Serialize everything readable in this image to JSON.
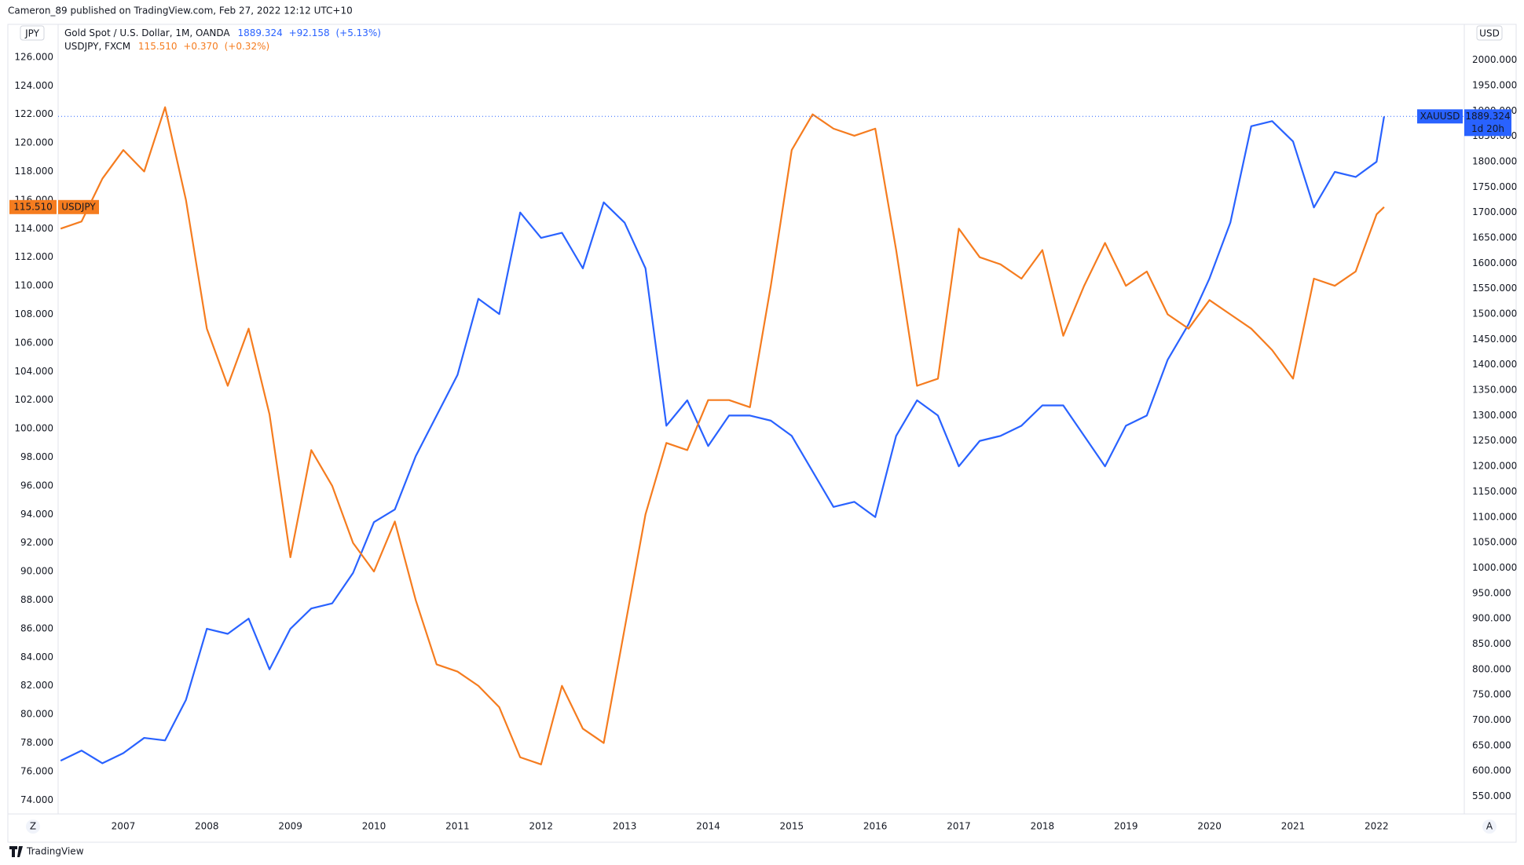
{
  "header": {
    "publisher": "Cameron_89 published on TradingView.com, Feb 27, 2022 12:12 UTC+10",
    "brand": "TradingView",
    "buttons": [
      "Z",
      "A"
    ]
  },
  "chart_data": {
    "type": "line",
    "x": [
      2006.25,
      2006.5,
      2006.75,
      2007.0,
      2007.25,
      2007.5,
      2007.75,
      2008.0,
      2008.25,
      2008.5,
      2008.75,
      2009.0,
      2009.25,
      2009.5,
      2009.75,
      2010.0,
      2010.25,
      2010.5,
      2010.75,
      2011.0,
      2011.25,
      2011.5,
      2011.75,
      2012.0,
      2012.25,
      2012.5,
      2012.75,
      2013.0,
      2013.25,
      2013.5,
      2013.75,
      2014.0,
      2014.25,
      2014.5,
      2014.75,
      2015.0,
      2015.25,
      2015.5,
      2015.75,
      2016.0,
      2016.25,
      2016.5,
      2016.75,
      2017.0,
      2017.25,
      2017.5,
      2017.75,
      2018.0,
      2018.25,
      2018.5,
      2018.75,
      2019.0,
      2019.25,
      2019.5,
      2019.75,
      2020.0,
      2020.25,
      2020.5,
      2020.75,
      2021.0,
      2021.25,
      2021.5,
      2021.75,
      2022.0,
      2022.09
    ],
    "series": [
      {
        "name": "Gold Spot / U.S. Dollar, 1M, OANDA",
        "tag": "XAUUSD",
        "last": "1889.324",
        "change": "+92.158",
        "change_pct": "(+5.13%)",
        "countdown": "1d 20h",
        "color": "#2962ff",
        "axis": "y2",
        "values": [
          620,
          640,
          615,
          635,
          665,
          660,
          740,
          880,
          870,
          900,
          800,
          880,
          920,
          930,
          990,
          1090,
          1115,
          1220,
          1300,
          1380,
          1530,
          1500,
          1700,
          1650,
          1660,
          1590,
          1720,
          1680,
          1590,
          1280,
          1330,
          1240,
          1300,
          1300,
          1290,
          1260,
          1190,
          1120,
          1130,
          1100,
          1260,
          1330,
          1300,
          1200,
          1250,
          1260,
          1280,
          1320,
          1320,
          1260,
          1200,
          1280,
          1300,
          1410,
          1480,
          1570,
          1680,
          1870,
          1880,
          1840,
          1710,
          1780,
          1770,
          1800,
          1889.324
        ]
      },
      {
        "name": "USDJPY, FXCM",
        "tag": "USDJPY",
        "last": "115.510",
        "change": "+0.370",
        "change_pct": "(+0.32%)",
        "color": "#f57c1f",
        "axis": "y",
        "values": [
          114,
          114.5,
          117.5,
          119.5,
          118,
          122.5,
          116,
          107,
          103,
          107,
          101,
          91,
          98.5,
          96,
          92,
          90,
          93.5,
          88,
          83.5,
          83,
          82,
          80.5,
          77,
          76.5,
          82,
          79,
          78,
          86,
          94,
          99,
          98.5,
          102,
          102,
          101.5,
          110,
          119.5,
          122,
          121,
          120.5,
          121,
          112.5,
          103,
          103.5,
          114,
          112,
          111.5,
          110.5,
          112.5,
          106.5,
          110,
          113,
          110,
          111,
          108,
          107,
          109,
          108,
          107,
          105.5,
          103.5,
          110.5,
          110,
          111,
          115,
          115.51
        ]
      }
    ],
    "y_unit": "JPY",
    "y2_unit": "USD",
    "xlim": [
      2006.22,
      2023.05
    ],
    "xticks": [
      2007,
      2008,
      2009,
      2010,
      2011,
      2012,
      2013,
      2014,
      2015,
      2016,
      2017,
      2018,
      2019,
      2020,
      2021,
      2022
    ],
    "ylim": [
      73.25,
      128.3
    ],
    "yticks": [
      {
        "value": 74,
        "label": "74.000"
      },
      {
        "value": 76,
        "label": "76.000"
      },
      {
        "value": 78,
        "label": "78.000"
      },
      {
        "value": 80,
        "label": "80.000"
      },
      {
        "value": 82,
        "label": "82.000"
      },
      {
        "value": 84,
        "label": "84.000"
      },
      {
        "value": 86,
        "label": "86.000"
      },
      {
        "value": 88,
        "label": "88.000"
      },
      {
        "value": 90,
        "label": "90.000"
      },
      {
        "value": 92,
        "label": "92.000"
      },
      {
        "value": 94,
        "label": "94.000"
      },
      {
        "value": 96,
        "label": "96.000"
      },
      {
        "value": 98,
        "label": "98.000"
      },
      {
        "value": 100,
        "label": "100.000"
      },
      {
        "value": 102,
        "label": "102.000"
      },
      {
        "value": 104,
        "label": "104.000"
      },
      {
        "value": 106,
        "label": "106.000"
      },
      {
        "value": 108,
        "label": "108.000"
      },
      {
        "value": 110,
        "label": "110.000"
      },
      {
        "value": 112,
        "label": "112.000"
      },
      {
        "value": 114,
        "label": "114.000"
      },
      {
        "value": 116,
        "label": "116.000"
      },
      {
        "value": 118,
        "label": "118.000"
      },
      {
        "value": 120,
        "label": "120.000"
      },
      {
        "value": 122,
        "label": "122.000"
      },
      {
        "value": 124,
        "label": "124.000"
      },
      {
        "value": 126,
        "label": "126.000"
      }
    ],
    "y2lim": [
      521.3,
      2070.7
    ],
    "y2ticks": [
      {
        "value": 550,
        "label": "550.000"
      },
      {
        "value": 600,
        "label": "600.000"
      },
      {
        "value": 650,
        "label": "650.000"
      },
      {
        "value": 700,
        "label": "700.000"
      },
      {
        "value": 750,
        "label": "750.000"
      },
      {
        "value": 800,
        "label": "800.000"
      },
      {
        "value": 850,
        "label": "850.000"
      },
      {
        "value": 900,
        "label": "900.000"
      },
      {
        "value": 950,
        "label": "950.000"
      },
      {
        "value": 1000,
        "label": "1000.000"
      },
      {
        "value": 1050,
        "label": "1050.000"
      },
      {
        "value": 1100,
        "label": "1100.000"
      },
      {
        "value": 1150,
        "label": "1150.000"
      },
      {
        "value": 1200,
        "label": "1200.000"
      },
      {
        "value": 1250,
        "label": "1250.000"
      },
      {
        "value": 1300,
        "label": "1300.000"
      },
      {
        "value": 1350,
        "label": "1350.000"
      },
      {
        "value": 1400,
        "label": "1400.000"
      },
      {
        "value": 1450,
        "label": "1450.000"
      },
      {
        "value": 1500,
        "label": "1500.000"
      },
      {
        "value": 1550,
        "label": "1550.000"
      },
      {
        "value": 1600,
        "label": "1600.000"
      },
      {
        "value": 1650,
        "label": "1650.000"
      },
      {
        "value": 1700,
        "label": "1700.000"
      },
      {
        "value": 1750,
        "label": "1750.000"
      },
      {
        "value": 1800,
        "label": "1800.000"
      },
      {
        "value": 1850,
        "label": "1850.000"
      },
      {
        "value": 1900,
        "label": "1900.000"
      },
      {
        "value": 1950,
        "label": "1950.000"
      },
      {
        "value": 2000,
        "label": "2000.000"
      }
    ],
    "grid": false
  }
}
